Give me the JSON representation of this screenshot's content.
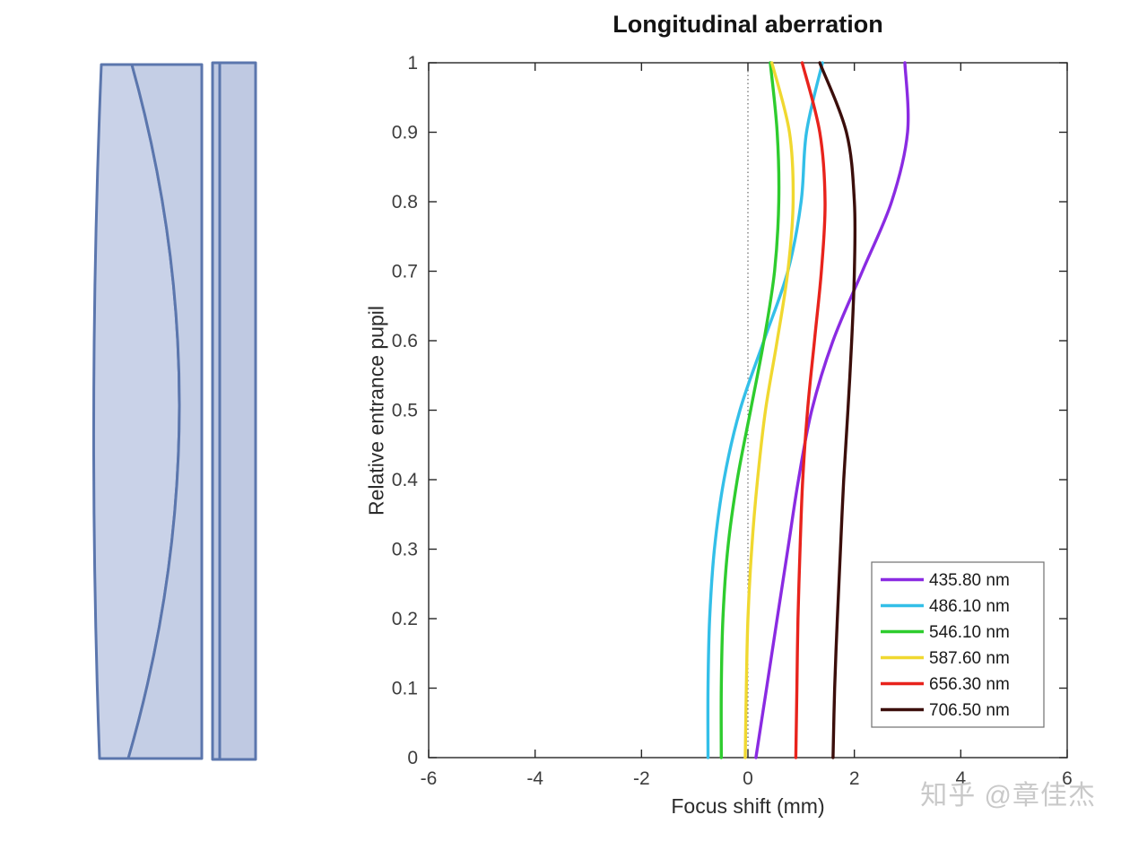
{
  "chart_data": {
    "type": "line",
    "title": "Longitudinal aberration",
    "xlabel": "Focus shift (mm)",
    "ylabel": "Relative entrance pupil",
    "xlim": [
      -6,
      6
    ],
    "ylim": [
      0,
      1
    ],
    "xticks": [
      -6,
      -4,
      -2,
      0,
      2,
      4,
      6
    ],
    "yticks": [
      0,
      0.1,
      0.2,
      0.3,
      0.4,
      0.5,
      0.6,
      0.7,
      0.8,
      0.9,
      1
    ],
    "grid": false,
    "zero_reference_line": true,
    "legend_position": "lower right",
    "axis_color": "#262626",
    "pupil": [
      0,
      0.1,
      0.2,
      0.3,
      0.4,
      0.5,
      0.6,
      0.7,
      0.8,
      0.9,
      1.0
    ],
    "series": [
      {
        "name": "435.80 nm",
        "color": "#8A2BE2",
        "values": [
          0.15,
          0.35,
          0.55,
          0.75,
          0.95,
          1.2,
          1.6,
          2.15,
          2.7,
          3.0,
          2.95
        ]
      },
      {
        "name": "486.10 nm",
        "color": "#33BFE8",
        "values": [
          -0.75,
          -0.75,
          -0.72,
          -0.63,
          -0.45,
          -0.15,
          0.3,
          0.75,
          1.0,
          1.1,
          1.4
        ]
      },
      {
        "name": "546.10 nm",
        "color": "#2ECC2E",
        "values": [
          -0.5,
          -0.5,
          -0.47,
          -0.38,
          -0.2,
          0.05,
          0.3,
          0.5,
          0.58,
          0.55,
          0.42
        ]
      },
      {
        "name": "587.60 nm",
        "color": "#F0D830",
        "values": [
          -0.05,
          -0.03,
          0.0,
          0.07,
          0.18,
          0.33,
          0.55,
          0.75,
          0.85,
          0.78,
          0.45
        ]
      },
      {
        "name": "656.30 nm",
        "color": "#E8231C",
        "values": [
          0.9,
          0.92,
          0.94,
          0.98,
          1.03,
          1.12,
          1.25,
          1.38,
          1.45,
          1.35,
          1.02
        ]
      },
      {
        "name": "706.50 nm",
        "color": "#3B0E0B",
        "values": [
          1.6,
          1.63,
          1.68,
          1.74,
          1.8,
          1.88,
          1.95,
          2.0,
          2.0,
          1.85,
          1.35
        ]
      }
    ]
  },
  "lens": {
    "fill_front": "#c9d2e8",
    "fill_rear": "#c4cee5",
    "fill_plate": "#bfc9e2",
    "stroke": "#5b76ad"
  },
  "watermark": {
    "text": "知乎 @章佳杰",
    "color": "#c9c9c9"
  }
}
